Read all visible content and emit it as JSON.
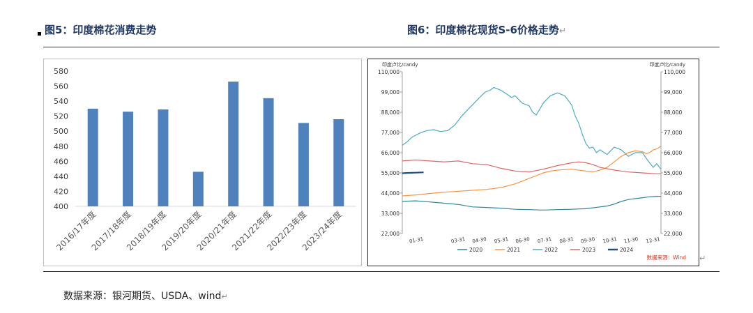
{
  "figures": {
    "left_title": "图5：印度棉花消费走势",
    "right_title": "图6：印度棉花现货S-6价格走势",
    "paragraph_mark": "↵"
  },
  "source_note": "数据来源：银河期货、USDA、wind",
  "chart_data": [
    {
      "type": "bar",
      "title": "",
      "categories": [
        "2016/17年度",
        "2017/18年度",
        "2018/19年度",
        "2019/20年度",
        "2020/21年度",
        "2021/22年度",
        "2022/23年度",
        "2023/24年度"
      ],
      "values": [
        530,
        526,
        529,
        446,
        566,
        544,
        511,
        516
      ],
      "ylim": [
        400,
        580
      ],
      "yticks": [
        400,
        420,
        440,
        460,
        480,
        500,
        520,
        540,
        560,
        580
      ],
      "bar_color": "#4f81bd",
      "grid": false
    },
    {
      "type": "line",
      "left_axis_label": "印度卢比/candy",
      "right_axis_label": "印度卢比/candy",
      "ylim": [
        22000,
        110000
      ],
      "yticks": [
        "22,000",
        "33,000",
        "44,000",
        "55,000",
        "66,000",
        "77,000",
        "88,000",
        "99,000",
        "110,000"
      ],
      "ytick_values": [
        22000,
        33000,
        44000,
        55000,
        66000,
        77000,
        88000,
        99000,
        110000
      ],
      "x_ticks": [
        "01-31",
        "03-31",
        "04-30",
        "05-31",
        "06-30",
        "07-31",
        "08-31",
        "09-30",
        "10-31",
        "11-30",
        "12-31"
      ],
      "x_tick_days": [
        31,
        90,
        120,
        151,
        181,
        212,
        243,
        273,
        304,
        334,
        365
      ],
      "x_range_days": [
        1,
        366
      ],
      "series": [
        {
          "name": "2020",
          "color": "#31849b",
          "x": [
            1,
            20,
            40,
            60,
            80,
            100,
            120,
            140,
            160,
            180,
            200,
            220,
            240,
            260,
            280,
            290,
            300,
            310,
            320,
            330,
            340,
            350,
            360,
            366
          ],
          "y": [
            39500,
            39800,
            39200,
            38500,
            37800,
            36500,
            36200,
            35800,
            35200,
            35000,
            34800,
            35000,
            35200,
            35500,
            36500,
            37000,
            38000,
            39500,
            40500,
            41000,
            41500,
            42000,
            42300,
            42200
          ]
        },
        {
          "name": "2021",
          "color": "#f79646",
          "x": [
            1,
            20,
            40,
            60,
            80,
            100,
            120,
            140,
            160,
            170,
            180,
            190,
            200,
            210,
            220,
            240,
            260,
            270,
            280,
            290,
            300,
            310,
            320,
            330,
            340,
            345,
            350,
            355,
            360,
            366
          ],
          "y": [
            42500,
            43000,
            43800,
            44500,
            45000,
            45500,
            46000,
            47000,
            49000,
            50500,
            52000,
            53500,
            55000,
            56000,
            56500,
            57000,
            56000,
            55500,
            56500,
            58000,
            61000,
            64000,
            66000,
            67000,
            66500,
            65500,
            66000,
            67500,
            68000,
            69500
          ]
        },
        {
          "name": "2022",
          "color": "#4bacc6",
          "x": [
            1,
            8,
            15,
            25,
            35,
            45,
            55,
            65,
            75,
            85,
            95,
            105,
            110,
            118,
            125,
            130,
            140,
            150,
            155,
            160,
            170,
            180,
            185,
            190,
            200,
            210,
            220,
            230,
            240,
            245,
            250,
            255,
            260,
            265,
            270,
            275,
            280,
            290,
            300,
            310,
            320,
            330,
            340,
            345,
            350,
            355,
            360,
            366
          ],
          "y": [
            70000,
            72000,
            74500,
            76500,
            78000,
            78500,
            77500,
            78000,
            81000,
            86000,
            90000,
            94000,
            96000,
            99000,
            100000,
            101500,
            100000,
            97500,
            96000,
            97000,
            93000,
            91500,
            88000,
            86500,
            93000,
            97000,
            98500,
            97000,
            92000,
            86000,
            82000,
            76000,
            71000,
            68500,
            69000,
            66000,
            67500,
            65000,
            69000,
            67500,
            64000,
            66000,
            66000,
            63000,
            60500,
            58000,
            60000,
            57000
          ]
        },
        {
          "name": "2023",
          "color": "#e06666",
          "x": [
            1,
            20,
            40,
            60,
            80,
            100,
            120,
            140,
            160,
            180,
            200,
            220,
            240,
            250,
            260,
            270,
            280,
            300,
            320,
            340,
            360,
            366
          ],
          "y": [
            61500,
            62000,
            61500,
            61000,
            61500,
            60000,
            59500,
            57500,
            56000,
            55500,
            57000,
            59000,
            60500,
            61000,
            60500,
            59500,
            58000,
            56500,
            55500,
            55000,
            54500,
            54500
          ]
        },
        {
          "name": "2024",
          "color": "#1f4e79",
          "x": [
            1,
            10,
            20,
            31
          ],
          "y": [
            54800,
            55000,
            55100,
            55300
          ]
        }
      ],
      "source_label": "数据来源：Wind"
    }
  ]
}
